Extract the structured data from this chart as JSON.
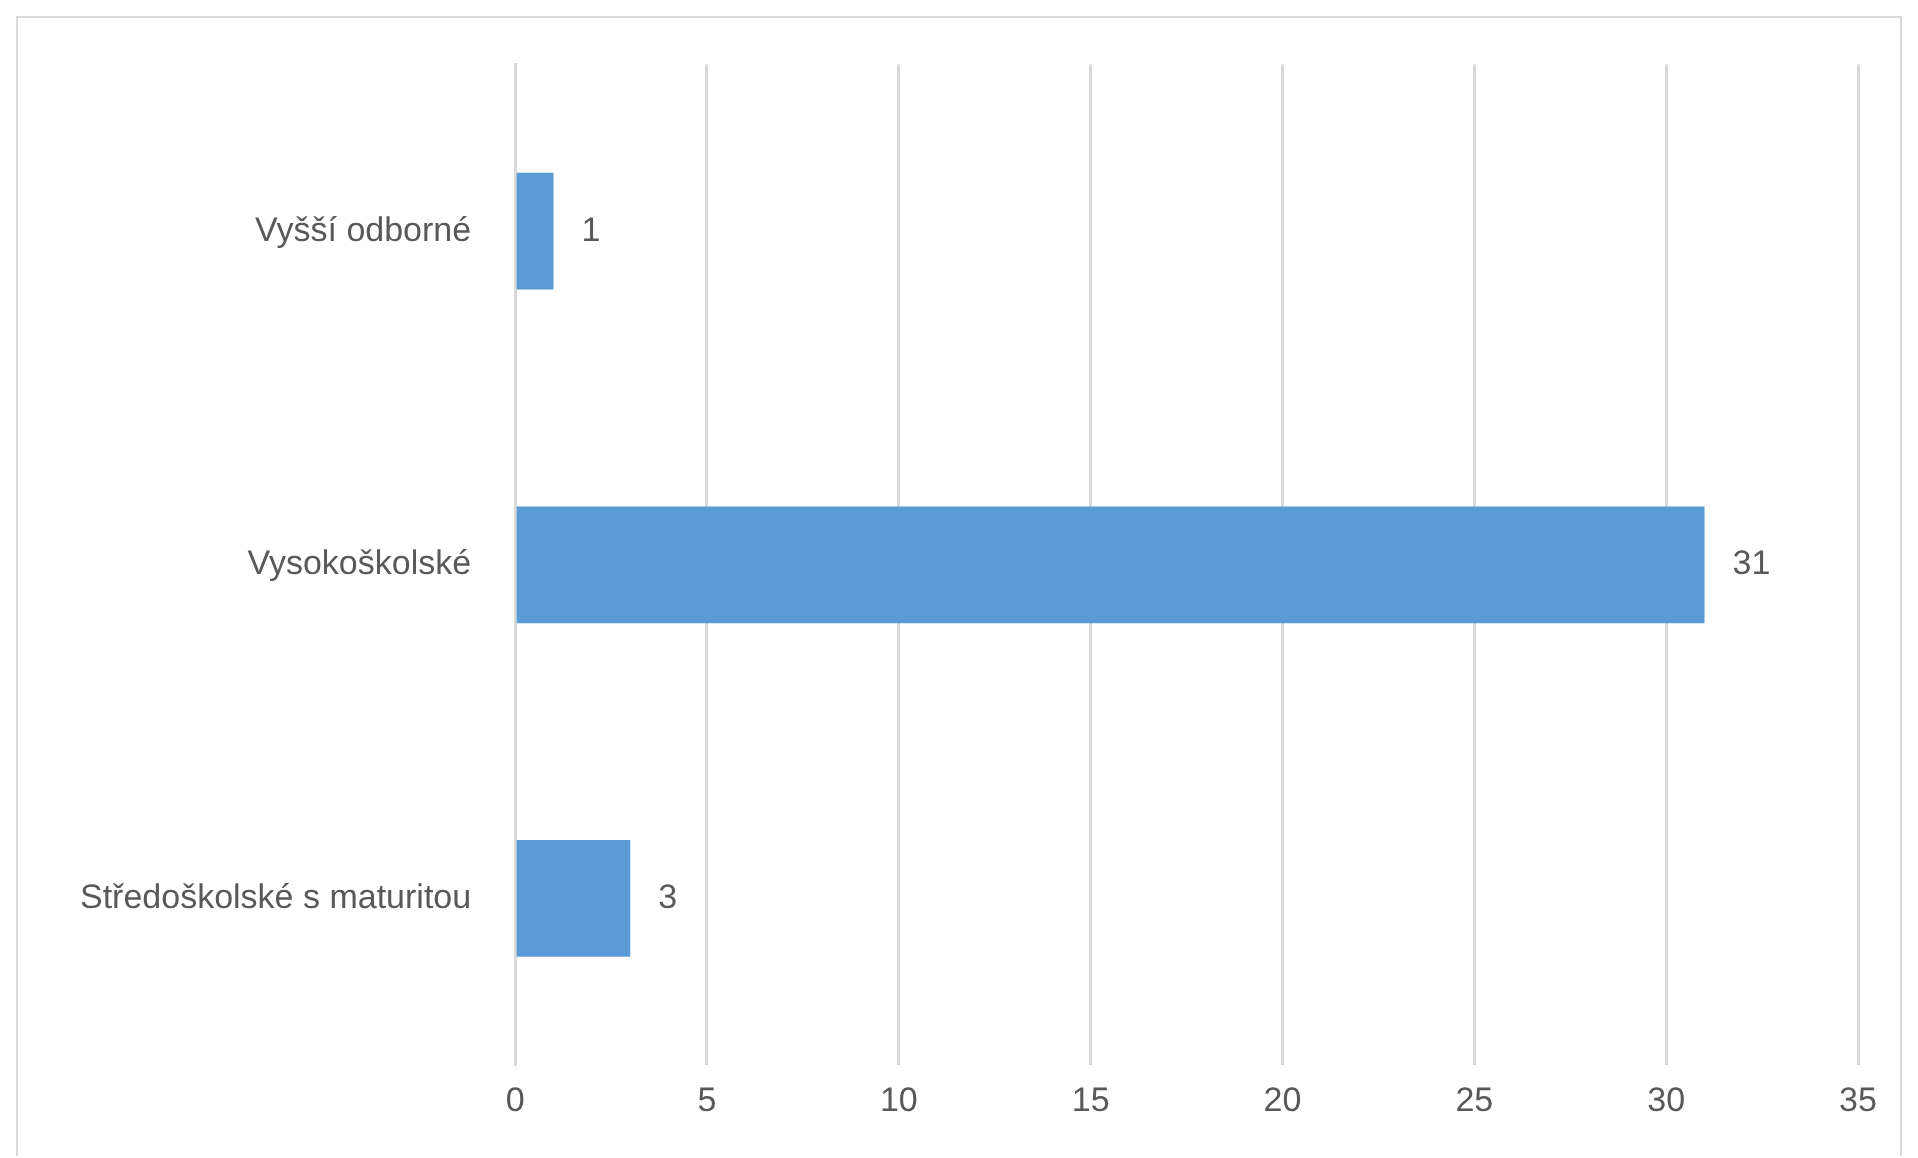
{
  "chart_data": {
    "type": "bar",
    "orientation": "horizontal",
    "categories": [
      "Vyšší odborné",
      "Vysokoškolské",
      "Středoškolské s maturitou"
    ],
    "values": [
      1,
      31,
      3
    ],
    "color": "#5b9bd5",
    "xlim": [
      0,
      35
    ],
    "xticks": [
      0,
      5,
      10,
      15,
      20,
      25,
      30,
      35
    ],
    "grid": "x",
    "data_labels": true
  }
}
